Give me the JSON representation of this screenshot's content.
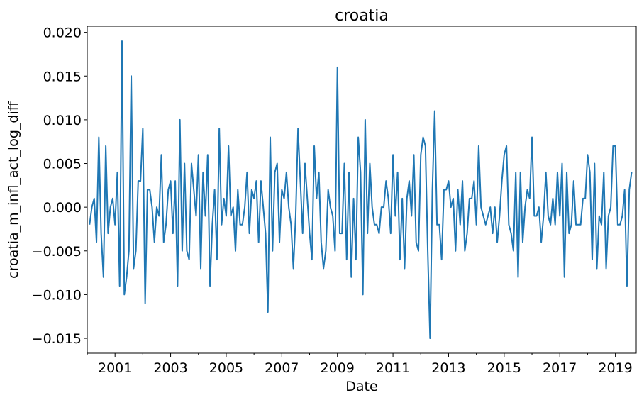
{
  "chart_data": {
    "type": "line",
    "title": "croatia",
    "xlabel": "Date",
    "ylabel": "croatia_m_infl_act_log_diff",
    "x_start": "2000-02",
    "x_end": "2019-10",
    "x_frequency": "monthly",
    "xlim": [
      "2000-01",
      "2019-10"
    ],
    "x_ticks": [
      "2001",
      "2003",
      "2005",
      "2007",
      "2009",
      "2011",
      "2013",
      "2015",
      "2017",
      "2019"
    ],
    "ylim": [
      -0.0167,
      0.0207
    ],
    "y_ticks": [
      "0.020",
      "0.015",
      "0.010",
      "0.005",
      "0.000",
      "−0.005",
      "−0.010",
      "−0.015"
    ],
    "grid": false,
    "legend": "none",
    "series": [
      {
        "color": "#1f77b4",
        "values": [
          -0.002,
          0.0,
          0.001,
          -0.004,
          0.008,
          -0.003,
          -0.008,
          0.007,
          -0.003,
          0.0,
          0.001,
          -0.002,
          0.004,
          -0.009,
          0.019,
          -0.01,
          -0.008,
          -0.005,
          0.015,
          -0.007,
          -0.005,
          0.003,
          0.003,
          0.009,
          -0.011,
          0.002,
          0.002,
          0.0,
          -0.004,
          0.0,
          -0.001,
          0.006,
          -0.004,
          -0.002,
          0.002,
          0.003,
          -0.003,
          0.003,
          -0.009,
          0.01,
          -0.005,
          0.005,
          -0.005,
          -0.006,
          0.005,
          0.002,
          -0.001,
          0.006,
          -0.007,
          0.004,
          -0.001,
          0.006,
          -0.009,
          -0.002,
          0.002,
          -0.006,
          0.009,
          -0.002,
          0.001,
          -0.001,
          0.007,
          -0.001,
          0.0,
          -0.005,
          0.002,
          -0.002,
          -0.002,
          0.0,
          0.004,
          -0.003,
          0.002,
          0.001,
          0.003,
          -0.004,
          0.003,
          0.0,
          -0.003,
          -0.012,
          0.008,
          -0.005,
          0.004,
          0.005,
          -0.004,
          0.002,
          0.001,
          0.004,
          0.0,
          -0.002,
          -0.007,
          -0.001,
          0.009,
          0.003,
          -0.003,
          0.005,
          0.001,
          -0.003,
          -0.006,
          0.007,
          0.001,
          0.004,
          -0.004,
          -0.007,
          -0.005,
          0.002,
          0.0,
          -0.001,
          -0.005,
          0.016,
          -0.003,
          -0.003,
          0.005,
          -0.006,
          0.004,
          -0.008,
          0.001,
          -0.006,
          0.008,
          0.004,
          -0.01,
          0.01,
          -0.003,
          0.005,
          0.0,
          -0.002,
          -0.002,
          -0.003,
          0.0,
          0.0,
          0.003,
          0.001,
          -0.003,
          0.006,
          -0.001,
          0.004,
          -0.006,
          0.001,
          -0.007,
          0.001,
          0.003,
          -0.001,
          0.006,
          -0.004,
          -0.005,
          0.006,
          0.008,
          0.007,
          -0.005,
          -0.015,
          0.002,
          0.011,
          -0.002,
          -0.002,
          -0.006,
          0.002,
          0.002,
          0.003,
          0.0,
          0.001,
          -0.005,
          0.002,
          -0.002,
          0.003,
          -0.005,
          -0.003,
          0.001,
          0.001,
          0.003,
          -0.002,
          0.007,
          0.0,
          -0.001,
          -0.002,
          -0.001,
          0.0,
          -0.003,
          0.0,
          -0.004,
          -0.001,
          0.003,
          0.006,
          0.007,
          -0.002,
          -0.003,
          -0.005,
          0.004,
          -0.008,
          0.004,
          -0.004,
          0.0,
          0.002,
          0.001,
          0.008,
          -0.001,
          -0.001,
          0.0,
          -0.004,
          -0.001,
          0.004,
          -0.001,
          -0.002,
          0.001,
          -0.002,
          0.004,
          -0.001,
          0.005,
          -0.008,
          0.004,
          -0.003,
          -0.002,
          0.003,
          -0.002,
          -0.002,
          -0.002,
          0.001,
          0.001,
          0.006,
          0.004,
          -0.006,
          0.005,
          -0.007,
          -0.001,
          -0.002,
          0.004,
          -0.007,
          -0.001,
          0.0,
          0.007,
          0.007,
          -0.002,
          -0.002,
          -0.001,
          0.002,
          -0.009,
          0.002,
          0.004
        ]
      }
    ]
  }
}
